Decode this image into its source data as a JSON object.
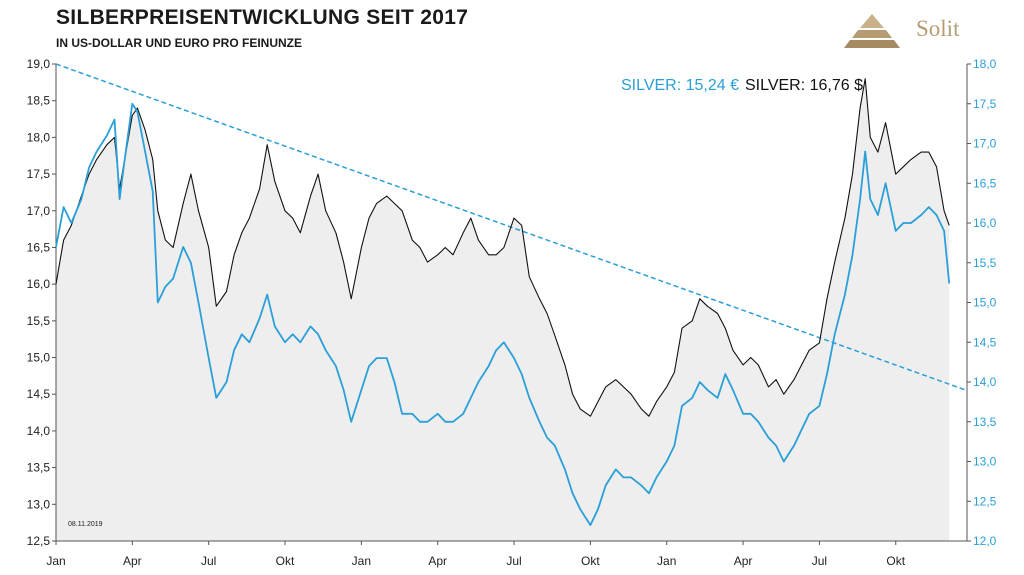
{
  "header": {
    "title": "SILBERPREISENTWICKLUNG SEIT 2017",
    "subtitle": "IN US-DOLLAR UND EURO PRO FEINUNZE"
  },
  "logo": {
    "text": "Solit",
    "color": "#b79c73"
  },
  "colors": {
    "usd": "#111111",
    "eur": "#2a9fd8",
    "area": "#eeeeee",
    "trend": "#2a9fd8"
  },
  "chart_data": {
    "type": "line",
    "date_note": "08.11.2019",
    "legend": {
      "eur_label": "SILVER: 15,24 €",
      "usd_label": "SILVER: 16,76 $",
      "placement": "top-right"
    },
    "x_tick_labels": [
      "Jan",
      "Apr",
      "Jul",
      "Okt",
      "Jan",
      "Apr",
      "Jul",
      "Okt",
      "Jan",
      "Apr",
      "Jul",
      "Okt"
    ],
    "y_left": {
      "range": [
        12.5,
        19.0
      ],
      "ticks": [
        "19,0",
        "18,5",
        "18,0",
        "17,5",
        "17,0",
        "16,5",
        "16,0",
        "15,5",
        "15,0",
        "14,5",
        "14,0",
        "13,5",
        "13,0",
        "12,5"
      ]
    },
    "y_right": {
      "range": [
        12.0,
        18.0
      ],
      "ticks": [
        "18,0",
        "17,5",
        "17,0",
        "16,5",
        "16,0",
        "15,5",
        "15,0",
        "14,5",
        "14,0",
        "13,5",
        "13,0",
        "12,5",
        "12,0"
      ]
    },
    "x_range_months": [
      0,
      35.8
    ],
    "series": [
      {
        "name": "SILVER $",
        "axis": "left",
        "points": [
          [
            0,
            16.0
          ],
          [
            0.3,
            16.6
          ],
          [
            0.6,
            16.8
          ],
          [
            1.0,
            17.2
          ],
          [
            1.3,
            17.5
          ],
          [
            1.6,
            17.7
          ],
          [
            2.0,
            17.9
          ],
          [
            2.3,
            18.0
          ],
          [
            2.5,
            17.3
          ],
          [
            2.7,
            17.7
          ],
          [
            3.0,
            18.3
          ],
          [
            3.2,
            18.4
          ],
          [
            3.5,
            18.1
          ],
          [
            3.8,
            17.7
          ],
          [
            4.0,
            17.0
          ],
          [
            4.3,
            16.6
          ],
          [
            4.6,
            16.5
          ],
          [
            5.0,
            17.1
          ],
          [
            5.3,
            17.5
          ],
          [
            5.6,
            17.0
          ],
          [
            6.0,
            16.5
          ],
          [
            6.3,
            15.7
          ],
          [
            6.7,
            15.9
          ],
          [
            7.0,
            16.4
          ],
          [
            7.3,
            16.7
          ],
          [
            7.6,
            16.9
          ],
          [
            8.0,
            17.3
          ],
          [
            8.3,
            17.9
          ],
          [
            8.6,
            17.4
          ],
          [
            9.0,
            17.0
          ],
          [
            9.3,
            16.9
          ],
          [
            9.6,
            16.7
          ],
          [
            10.0,
            17.2
          ],
          [
            10.3,
            17.5
          ],
          [
            10.6,
            17.0
          ],
          [
            11.0,
            16.7
          ],
          [
            11.3,
            16.3
          ],
          [
            11.6,
            15.8
          ],
          [
            12.0,
            16.5
          ],
          [
            12.3,
            16.9
          ],
          [
            12.6,
            17.1
          ],
          [
            13.0,
            17.2
          ],
          [
            13.3,
            17.1
          ],
          [
            13.6,
            17.0
          ],
          [
            14.0,
            16.6
          ],
          [
            14.3,
            16.5
          ],
          [
            14.6,
            16.3
          ],
          [
            15.0,
            16.4
          ],
          [
            15.3,
            16.5
          ],
          [
            15.6,
            16.4
          ],
          [
            16.0,
            16.7
          ],
          [
            16.3,
            16.9
          ],
          [
            16.6,
            16.6
          ],
          [
            17.0,
            16.4
          ],
          [
            17.3,
            16.4
          ],
          [
            17.6,
            16.5
          ],
          [
            18.0,
            16.9
          ],
          [
            18.3,
            16.8
          ],
          [
            18.6,
            16.1
          ],
          [
            19.0,
            15.8
          ],
          [
            19.3,
            15.6
          ],
          [
            19.6,
            15.3
          ],
          [
            20.0,
            14.9
          ],
          [
            20.3,
            14.5
          ],
          [
            20.6,
            14.3
          ],
          [
            21.0,
            14.2
          ],
          [
            21.3,
            14.4
          ],
          [
            21.6,
            14.6
          ],
          [
            22.0,
            14.7
          ],
          [
            22.3,
            14.6
          ],
          [
            22.6,
            14.5
          ],
          [
            23.0,
            14.3
          ],
          [
            23.3,
            14.2
          ],
          [
            23.6,
            14.4
          ],
          [
            24.0,
            14.6
          ],
          [
            24.3,
            14.8
          ],
          [
            24.6,
            15.4
          ],
          [
            25.0,
            15.5
          ],
          [
            25.3,
            15.8
          ],
          [
            25.6,
            15.7
          ],
          [
            26.0,
            15.6
          ],
          [
            26.3,
            15.4
          ],
          [
            26.6,
            15.1
          ],
          [
            27.0,
            14.9
          ],
          [
            27.3,
            15.0
          ],
          [
            27.6,
            14.9
          ],
          [
            28.0,
            14.6
          ],
          [
            28.3,
            14.7
          ],
          [
            28.6,
            14.5
          ],
          [
            29.0,
            14.7
          ],
          [
            29.3,
            14.9
          ],
          [
            29.6,
            15.1
          ],
          [
            30.0,
            15.2
          ],
          [
            30.3,
            15.8
          ],
          [
            30.6,
            16.3
          ],
          [
            31.0,
            16.9
          ],
          [
            31.3,
            17.5
          ],
          [
            31.6,
            18.4
          ],
          [
            31.8,
            18.8
          ],
          [
            32.0,
            18.0
          ],
          [
            32.3,
            17.8
          ],
          [
            32.6,
            18.2
          ],
          [
            33.0,
            17.5
          ],
          [
            33.3,
            17.6
          ],
          [
            33.6,
            17.7
          ],
          [
            34.0,
            17.8
          ],
          [
            34.3,
            17.8
          ],
          [
            34.6,
            17.6
          ],
          [
            34.9,
            17.0
          ],
          [
            35.1,
            16.8
          ]
        ]
      },
      {
        "name": "SILVER €",
        "axis": "right",
        "points": [
          [
            0,
            15.7
          ],
          [
            0.3,
            16.2
          ],
          [
            0.6,
            16.0
          ],
          [
            1.0,
            16.3
          ],
          [
            1.3,
            16.7
          ],
          [
            1.6,
            16.9
          ],
          [
            2.0,
            17.1
          ],
          [
            2.3,
            17.3
          ],
          [
            2.5,
            16.3
          ],
          [
            2.7,
            16.8
          ],
          [
            3.0,
            17.5
          ],
          [
            3.2,
            17.4
          ],
          [
            3.5,
            16.9
          ],
          [
            3.8,
            16.4
          ],
          [
            4.0,
            15.0
          ],
          [
            4.3,
            15.2
          ],
          [
            4.6,
            15.3
          ],
          [
            5.0,
            15.7
          ],
          [
            5.3,
            15.5
          ],
          [
            5.6,
            15.0
          ],
          [
            6.0,
            14.3
          ],
          [
            6.3,
            13.8
          ],
          [
            6.7,
            14.0
          ],
          [
            7.0,
            14.4
          ],
          [
            7.3,
            14.6
          ],
          [
            7.6,
            14.5
          ],
          [
            8.0,
            14.8
          ],
          [
            8.3,
            15.1
          ],
          [
            8.6,
            14.7
          ],
          [
            9.0,
            14.5
          ],
          [
            9.3,
            14.6
          ],
          [
            9.6,
            14.5
          ],
          [
            10.0,
            14.7
          ],
          [
            10.3,
            14.6
          ],
          [
            10.6,
            14.4
          ],
          [
            11.0,
            14.2
          ],
          [
            11.3,
            13.9
          ],
          [
            11.6,
            13.5
          ],
          [
            12.0,
            13.9
          ],
          [
            12.3,
            14.2
          ],
          [
            12.6,
            14.3
          ],
          [
            13.0,
            14.3
          ],
          [
            13.3,
            14.0
          ],
          [
            13.6,
            13.6
          ],
          [
            14.0,
            13.6
          ],
          [
            14.3,
            13.5
          ],
          [
            14.6,
            13.5
          ],
          [
            15.0,
            13.6
          ],
          [
            15.3,
            13.5
          ],
          [
            15.6,
            13.5
          ],
          [
            16.0,
            13.6
          ],
          [
            16.3,
            13.8
          ],
          [
            16.6,
            14.0
          ],
          [
            17.0,
            14.2
          ],
          [
            17.3,
            14.4
          ],
          [
            17.6,
            14.5
          ],
          [
            18.0,
            14.3
          ],
          [
            18.3,
            14.1
          ],
          [
            18.6,
            13.8
          ],
          [
            19.0,
            13.5
          ],
          [
            19.3,
            13.3
          ],
          [
            19.6,
            13.2
          ],
          [
            20.0,
            12.9
          ],
          [
            20.3,
            12.6
          ],
          [
            20.6,
            12.4
          ],
          [
            21.0,
            12.2
          ],
          [
            21.3,
            12.4
          ],
          [
            21.6,
            12.7
          ],
          [
            22.0,
            12.9
          ],
          [
            22.3,
            12.8
          ],
          [
            22.6,
            12.8
          ],
          [
            23.0,
            12.7
          ],
          [
            23.3,
            12.6
          ],
          [
            23.6,
            12.8
          ],
          [
            24.0,
            13.0
          ],
          [
            24.3,
            13.2
          ],
          [
            24.6,
            13.7
          ],
          [
            25.0,
            13.8
          ],
          [
            25.3,
            14.0
          ],
          [
            25.6,
            13.9
          ],
          [
            26.0,
            13.8
          ],
          [
            26.3,
            14.1
          ],
          [
            26.6,
            13.9
          ],
          [
            27.0,
            13.6
          ],
          [
            27.3,
            13.6
          ],
          [
            27.6,
            13.5
          ],
          [
            28.0,
            13.3
          ],
          [
            28.3,
            13.2
          ],
          [
            28.6,
            13.0
          ],
          [
            29.0,
            13.2
          ],
          [
            29.3,
            13.4
          ],
          [
            29.6,
            13.6
          ],
          [
            30.0,
            13.7
          ],
          [
            30.3,
            14.1
          ],
          [
            30.6,
            14.6
          ],
          [
            31.0,
            15.1
          ],
          [
            31.3,
            15.6
          ],
          [
            31.6,
            16.3
          ],
          [
            31.8,
            16.9
          ],
          [
            32.0,
            16.3
          ],
          [
            32.3,
            16.1
          ],
          [
            32.6,
            16.5
          ],
          [
            33.0,
            15.9
          ],
          [
            33.3,
            16.0
          ],
          [
            33.6,
            16.0
          ],
          [
            34.0,
            16.1
          ],
          [
            34.3,
            16.2
          ],
          [
            34.6,
            16.1
          ],
          [
            34.9,
            15.9
          ],
          [
            35.1,
            15.24
          ]
        ]
      }
    ],
    "trendline": {
      "axis": "left",
      "from": [
        0,
        19.0
      ],
      "to": [
        35.8,
        14.55
      ],
      "style": "dashed"
    }
  }
}
